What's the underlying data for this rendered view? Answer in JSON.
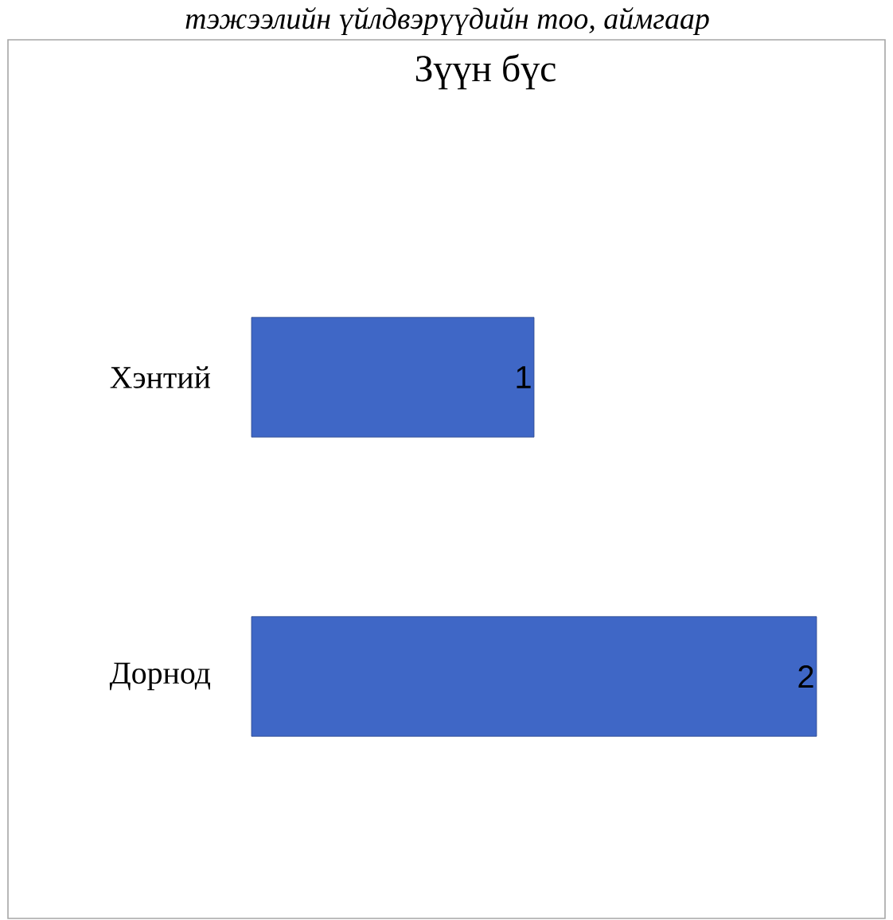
{
  "chart_data": {
    "type": "bar",
    "orientation": "horizontal",
    "title": "Зүүн бүс",
    "annotations": [
      "тэжээлийн үйлдвэрүүдийн тоо, аймгаар"
    ],
    "categories": [
      "Хэнтий",
      "Дорнод"
    ],
    "values": [
      1,
      2
    ],
    "color": "#3f67c6",
    "data_labels": true
  }
}
